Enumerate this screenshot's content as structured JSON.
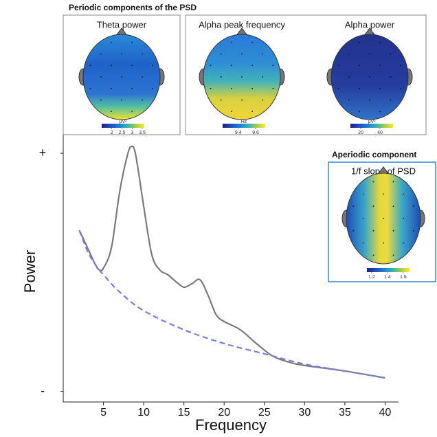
{
  "chart_data": {
    "type": "line",
    "x_label": "Frequency",
    "y_label": "Power",
    "xlim": [
      0,
      41.5
    ],
    "xticks": [
      5,
      10,
      15,
      20,
      25,
      30,
      35,
      40
    ],
    "ylim": [
      0,
      10
    ],
    "yticks": [
      {
        "value": 9.4,
        "label": "+"
      },
      {
        "value": 0.4,
        "label": "-"
      }
    ],
    "series": [
      {
        "color": "#7a7a7a",
        "style": "solid",
        "x": [
          2,
          3,
          4,
          4.5,
          5,
          6,
          7,
          8,
          8.5,
          9,
          10,
          11,
          12,
          13,
          14,
          15,
          16,
          17,
          18,
          19,
          20,
          22,
          24,
          26,
          28,
          30,
          35,
          40
        ],
        "values": [
          6.49,
          5.84,
          5.19,
          4.99,
          5.06,
          5.84,
          7.92,
          9.35,
          9.66,
          9.35,
          7.4,
          5.58,
          4.99,
          4.81,
          4.55,
          4.34,
          4.47,
          4.62,
          4.03,
          3.3,
          3.04,
          2.73,
          2.21,
          1.74,
          1.51,
          1.38,
          1.17,
          0.91
        ]
      },
      {
        "color": "#7b7be8",
        "style": "dashed",
        "x": [
          2,
          3,
          4,
          5,
          7,
          10,
          15,
          20,
          25,
          30,
          35,
          40
        ],
        "values": [
          6.49,
          5.71,
          5.19,
          4.81,
          4.16,
          3.45,
          2.73,
          2.21,
          1.82,
          1.43,
          1.17,
          0.91
        ]
      }
    ]
  },
  "insets": {
    "periodic_title": "Periodic components of the PSD",
    "aperiodic_title": "Aperiodic component",
    "maps": [
      {
        "title": "Theta power",
        "unit": "μV²",
        "clim": [
          1.5,
          3.6
        ],
        "ticks": [
          2,
          2.5,
          3,
          3.5
        ]
      },
      {
        "title": "Alpha peak frequency",
        "unit": "Hz",
        "clim": [
          9.22,
          9.71
        ],
        "ticks": [
          9.4,
          9.6
        ]
      },
      {
        "title": "Alpha power",
        "unit": "μV²",
        "clim": [
          9.3,
          53.6
        ],
        "ticks": [
          20,
          40
        ]
      },
      {
        "title": "1/f slope of PSD",
        "clim": [
          1.14,
          1.68
        ],
        "ticks": [
          1.2,
          1.4,
          1.6
        ]
      }
    ]
  }
}
